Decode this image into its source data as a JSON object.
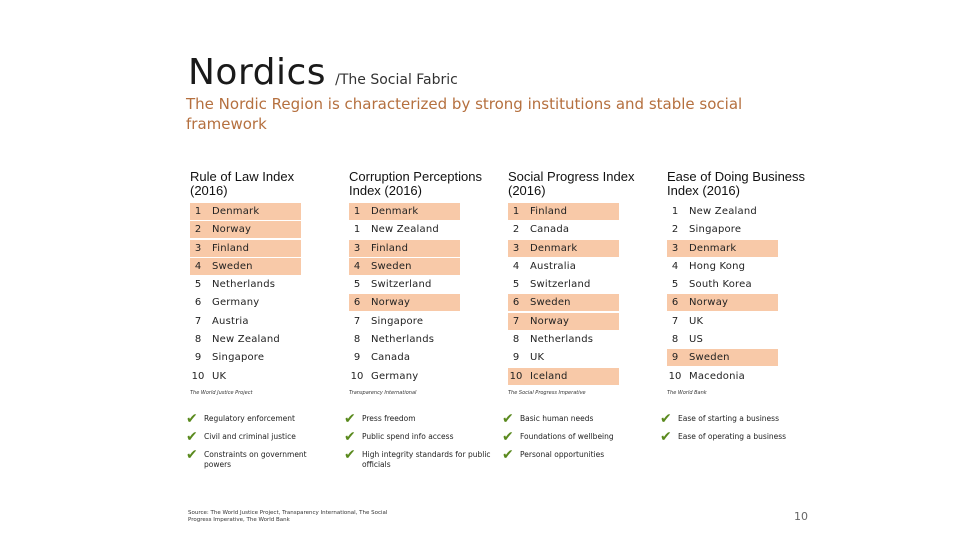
{
  "header": {
    "title": "Nordics",
    "title_suffix": "/The Social Fabric",
    "subtitle": "The Nordic Region is characterized by strong institutions and stable social framework"
  },
  "accent_color": "#f8c9a8",
  "columns": [
    {
      "heading": "Rule of Law Index (2016)",
      "items": [
        {
          "rank": "1",
          "name": "Denmark",
          "highlight": true
        },
        {
          "rank": "2",
          "name": "Norway",
          "highlight": true
        },
        {
          "rank": "3",
          "name": "Finland",
          "highlight": true
        },
        {
          "rank": "4",
          "name": "Sweden",
          "highlight": true
        },
        {
          "rank": "5",
          "name": "Netherlands",
          "highlight": false
        },
        {
          "rank": "6",
          "name": "Germany",
          "highlight": false
        },
        {
          "rank": "7",
          "name": "Austria",
          "highlight": false
        },
        {
          "rank": "8",
          "name": "New Zealand",
          "highlight": false
        },
        {
          "rank": "9",
          "name": "Singapore",
          "highlight": false
        },
        {
          "rank": "10",
          "name": "UK",
          "highlight": false
        }
      ],
      "source": "The World Justice Project",
      "checks": [
        "Regulatory enforcement",
        "Civil and criminal justice",
        "Constraints on government powers"
      ]
    },
    {
      "heading": "Corruption Perceptions Index (2016)",
      "items": [
        {
          "rank": "1",
          "name": "Denmark",
          "highlight": true
        },
        {
          "rank": "1",
          "name": "New Zealand",
          "highlight": false
        },
        {
          "rank": "3",
          "name": "Finland",
          "highlight": true
        },
        {
          "rank": "4",
          "name": "Sweden",
          "highlight": true
        },
        {
          "rank": "5",
          "name": "Switzerland",
          "highlight": false
        },
        {
          "rank": "6",
          "name": "Norway",
          "highlight": true
        },
        {
          "rank": "7",
          "name": "Singapore",
          "highlight": false
        },
        {
          "rank": "8",
          "name": "Netherlands",
          "highlight": false
        },
        {
          "rank": "9",
          "name": "Canada",
          "highlight": false
        },
        {
          "rank": "10",
          "name": "Germany",
          "highlight": false
        }
      ],
      "source": "Transparency International",
      "checks": [
        "Press freedom",
        "Public spend info access",
        "High integrity standards for public officials"
      ]
    },
    {
      "heading": "Social Progress Index (2016)",
      "items": [
        {
          "rank": "1",
          "name": "Finland",
          "highlight": true
        },
        {
          "rank": "2",
          "name": "Canada",
          "highlight": false
        },
        {
          "rank": "3",
          "name": "Denmark",
          "highlight": true
        },
        {
          "rank": "4",
          "name": "Australia",
          "highlight": false
        },
        {
          "rank": "5",
          "name": "Switzerland",
          "highlight": false
        },
        {
          "rank": "6",
          "name": "Sweden",
          "highlight": true
        },
        {
          "rank": "7",
          "name": "Norway",
          "highlight": true
        },
        {
          "rank": "8",
          "name": "Netherlands",
          "highlight": false
        },
        {
          "rank": "9",
          "name": "UK",
          "highlight": false
        },
        {
          "rank": "10",
          "name": "Iceland",
          "highlight": true
        }
      ],
      "source": "The Social Progress Imperative",
      "checks": [
        "Basic human needs",
        "Foundations of wellbeing",
        "Personal opportunities"
      ]
    },
    {
      "heading": "Ease of Doing Business Index (2016)",
      "items": [
        {
          "rank": "1",
          "name": "New Zealand",
          "highlight": false
        },
        {
          "rank": "2",
          "name": "Singapore",
          "highlight": false
        },
        {
          "rank": "3",
          "name": "Denmark",
          "highlight": true
        },
        {
          "rank": "4",
          "name": "Hong Kong",
          "highlight": false
        },
        {
          "rank": "5",
          "name": "South Korea",
          "highlight": false
        },
        {
          "rank": "6",
          "name": "Norway",
          "highlight": true
        },
        {
          "rank": "7",
          "name": "UK",
          "highlight": false
        },
        {
          "rank": "8",
          "name": "US",
          "highlight": false
        },
        {
          "rank": "9",
          "name": "Sweden",
          "highlight": true
        },
        {
          "rank": "10",
          "name": "Macedonia",
          "highlight": false
        }
      ],
      "source": "The World Bank",
      "checks": [
        "Ease of starting a business",
        "Ease of operating a business"
      ]
    }
  ],
  "footer": {
    "source": "Source: The World Justice Project, Transparency International, The Social Progress Imperative, The World Bank",
    "page_number": "10"
  }
}
